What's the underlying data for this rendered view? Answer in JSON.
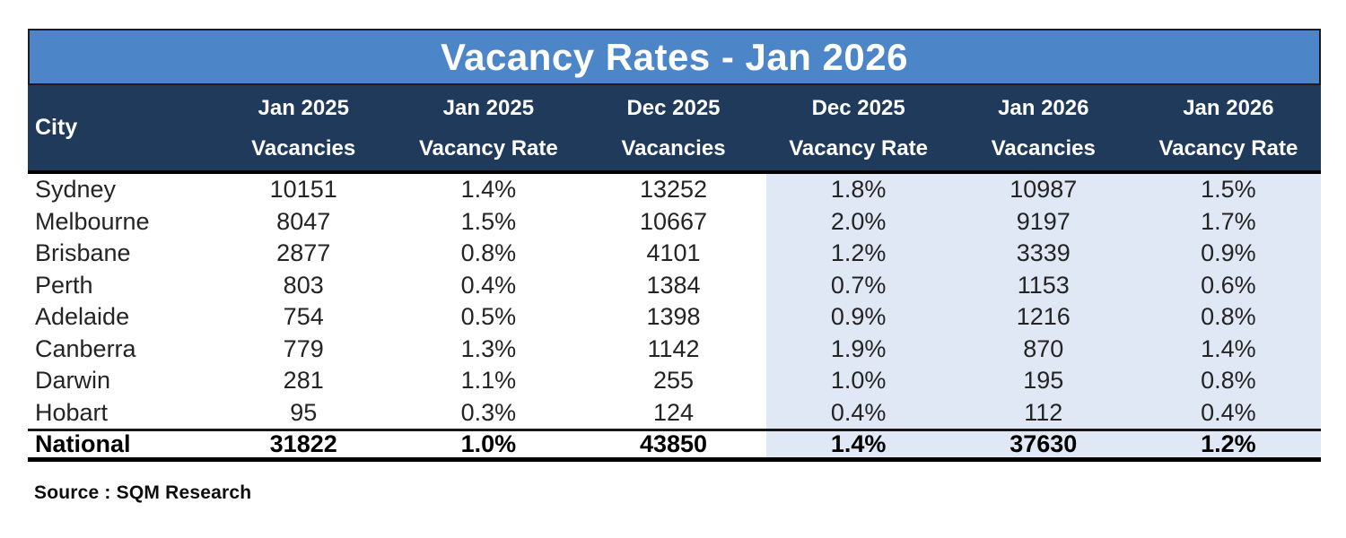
{
  "title": "Vacancy Rates - Jan 2026",
  "source": "Source : SQM Research",
  "colors": {
    "title_bar_blue": "#4C86C9",
    "header_navy": "#203A5C",
    "shaded_column_blue": "#DFE8F4",
    "title_text": "#ffffff",
    "body_text": "#242424"
  },
  "columns": [
    {
      "line1": "City",
      "line2": ""
    },
    {
      "line1": "Jan 2025",
      "line2": "Vacancies"
    },
    {
      "line1": "Jan 2025",
      "line2": "Vacancy Rate"
    },
    {
      "line1": "Dec 2025",
      "line2": "Vacancies"
    },
    {
      "line1": "Dec 2025",
      "line2": "Vacancy Rate"
    },
    {
      "line1": "Jan 2026",
      "line2": "Vacancies"
    },
    {
      "line1": "Jan 2026",
      "line2": "Vacancy Rate"
    }
  ],
  "rows": [
    {
      "city": "Sydney",
      "values": [
        "10151",
        "1.4%",
        "13252",
        "1.8%",
        "10987",
        "1.5%"
      ]
    },
    {
      "city": "Melbourne",
      "values": [
        "8047",
        "1.5%",
        "10667",
        "2.0%",
        "9197",
        "1.7%"
      ]
    },
    {
      "city": "Brisbane",
      "values": [
        "2877",
        "0.8%",
        "4101",
        "1.2%",
        "3339",
        "0.9%"
      ]
    },
    {
      "city": "Perth",
      "values": [
        "803",
        "0.4%",
        "1384",
        "0.7%",
        "1153",
        "0.6%"
      ]
    },
    {
      "city": "Adelaide",
      "values": [
        "754",
        "0.5%",
        "1398",
        "0.9%",
        "1216",
        "0.8%"
      ]
    },
    {
      "city": "Canberra",
      "values": [
        "779",
        "1.3%",
        "1142",
        "1.9%",
        "870",
        "1.4%"
      ]
    },
    {
      "city": "Darwin",
      "values": [
        "281",
        "1.1%",
        "255",
        "1.0%",
        "195",
        "0.8%"
      ]
    },
    {
      "city": "Hobart",
      "values": [
        "95",
        "0.3%",
        "124",
        "0.4%",
        "112",
        "0.4%"
      ]
    }
  ],
  "national": {
    "city": "National",
    "values": [
      "31822",
      "1.0%",
      "43850",
      "1.4%",
      "37630",
      "1.2%"
    ]
  },
  "chart_data": {
    "type": "table",
    "title": "Vacancy Rates - Jan 2026",
    "columns": [
      "City",
      "Jan 2025 Vacancies",
      "Jan 2025 Vacancy Rate",
      "Dec 2025 Vacancies",
      "Dec 2025 Vacancy Rate",
      "Jan 2026 Vacancies",
      "Jan 2026 Vacancy Rate"
    ],
    "rows": [
      [
        "Sydney",
        10151,
        "1.4%",
        13252,
        "1.8%",
        10987,
        "1.5%"
      ],
      [
        "Melbourne",
        8047,
        "1.5%",
        10667,
        "2.0%",
        9197,
        "1.7%"
      ],
      [
        "Brisbane",
        2877,
        "0.8%",
        4101,
        "1.2%",
        3339,
        "0.9%"
      ],
      [
        "Perth",
        803,
        "0.4%",
        1384,
        "0.7%",
        1153,
        "0.6%"
      ],
      [
        "Adelaide",
        754,
        "0.5%",
        1398,
        "0.9%",
        1216,
        "0.8%"
      ],
      [
        "Canberra",
        779,
        "1.3%",
        1142,
        "1.9%",
        870,
        "1.4%"
      ],
      [
        "Darwin",
        281,
        "1.1%",
        255,
        "1.0%",
        195,
        "0.8%"
      ],
      [
        "Hobart",
        95,
        "0.3%",
        124,
        "0.4%",
        112,
        "0.4%"
      ],
      [
        "National",
        31822,
        "1.0%",
        43850,
        "1.4%",
        37630,
        "1.2%"
      ]
    ],
    "source": "Source : SQM Research",
    "layout_hints": {
      "shaded_columns": [
        "Dec 2025 Vacancy Rate",
        "Jan 2026 Vacancies",
        "Jan 2026 Vacancy Rate"
      ],
      "totals_row": "National"
    }
  }
}
